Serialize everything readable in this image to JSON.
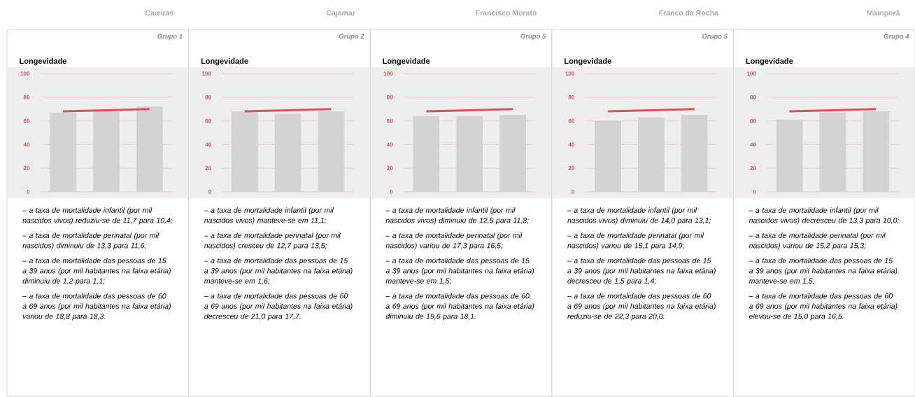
{
  "chart_data": [
    {
      "type": "bar",
      "title": "Longevidade",
      "subtitle": "Caieiras",
      "categories": [
        null,
        null,
        null
      ],
      "ylim": [
        0,
        100
      ],
      "yticks": [
        0,
        20,
        40,
        60,
        80,
        100
      ],
      "grid": "y",
      "tick_labels": "y",
      "series": [
        {
          "color": "#d3d3d3",
          "values": [
            67,
            68,
            72
          ]
        },
        {
          "type": "line",
          "color": "#e04e58",
          "values": [
            68,
            69,
            70
          ]
        }
      ],
      "annotations": [
        "Grupo 1",
        "– a taxa de mortalidade infantil (por mil nascidos vivos) reduziu-se de 11,7 para 10,4;",
        "– a taxa de mortalidade perinatal (por mil nascidos) diminuiu de 13,3 para 11,6;",
        "– a taxa de mortalidade das pessoas de 15 a 39 anos (por mil habitantes na faixa etária) diminuiu de 1,2 para 1,1;",
        "– a taxa de mortalidade das pessoas de 60 a 69 anos (por mil habitantes na faixa etária) variou de 18,8 para 18,3."
      ]
    },
    {
      "type": "bar",
      "title": "Longevidade",
      "subtitle": "Cajamar",
      "categories": [
        null,
        null,
        null
      ],
      "ylim": [
        0,
        100
      ],
      "yticks": [
        0,
        20,
        40,
        60,
        80,
        100
      ],
      "grid": "y",
      "tick_labels": "y",
      "series": [
        {
          "color": "#d3d3d3",
          "values": [
            68,
            66,
            68
          ]
        },
        {
          "type": "line",
          "color": "#e04e58",
          "values": [
            68,
            69,
            70
          ]
        }
      ],
      "annotations": [
        "Grupo 2",
        "– a taxa de mortalidade infantil (por mil nascidos vivos) manteve-se em 11,1;",
        "– a taxa de mortalidade perinatal (por mil nascidos) cresceu de 12,7 para 13,5;",
        "– a taxa de mortalidade das pessoas de 15 a 39 anos (por mil habitantes na faixa etária) manteve-se em 1,6;",
        "– a taxa de mortalidade das pessoas de 60 a 69 anos (por mil habitantes na faixa etária) decresceu de 21,0 para 17,7."
      ]
    },
    {
      "type": "bar",
      "title": "Longevidade",
      "subtitle": "Francisco Morato",
      "categories": [
        null,
        null,
        null
      ],
      "ylim": [
        0,
        100
      ],
      "yticks": [
        0,
        20,
        40,
        60,
        80,
        100
      ],
      "grid": "y",
      "tick_labels": "y",
      "series": [
        {
          "color": "#d3d3d3",
          "values": [
            64,
            64,
            65
          ]
        },
        {
          "type": "line",
          "color": "#e04e58",
          "values": [
            68,
            69,
            70
          ]
        }
      ],
      "annotations": [
        "Grupo 5",
        "– a taxa de mortalidade infantil (por mil nascidos vivos) diminuiu de 12,5 para 11,8;",
        "– a taxa de mortalidade perinatal (por mil nascidos) variou de 17,3 para 16,5;",
        "– a taxa de mortalidade das pessoas de 15 a 39 anos (por mil habitantes na faixa etária) manteve-se em 1,5;",
        "– a taxa de mortalidade das pessoas de 60 a 69 anos (por mil habitantes na faixa etária) diminuiu de 19,6 para 18,1."
      ]
    },
    {
      "type": "bar",
      "title": "Longevidade",
      "subtitle": "Franco da Rocha",
      "categories": [
        null,
        null,
        null
      ],
      "ylim": [
        0,
        100
      ],
      "yticks": [
        0,
        20,
        40,
        60,
        80,
        100
      ],
      "grid": "y",
      "tick_labels": "y",
      "series": [
        {
          "color": "#d3d3d3",
          "values": [
            60,
            63,
            65
          ]
        },
        {
          "type": "line",
          "color": "#e04e58",
          "values": [
            68,
            69,
            70
          ]
        }
      ],
      "annotations": [
        "Grupo 5",
        "– a taxa de mortalidade infantil (por mil nascidos vivos) diminuiu de 14,0 para 13,1;",
        "– a taxa de mortalidade perinatal (por mil nascidos) variou de 15,1 para 14,9;",
        "– a taxa de mortalidade das pessoas de 15 a 39 anos (por mil habitantes na faixa etária) decresceu de 1,5 para 1,4;",
        "– a taxa de mortalidade das pessoas de 60 a 69 anos (por mil habitantes na faixa etária) reduziu-se de 22,3 para 20,0."
      ]
    },
    {
      "type": "bar",
      "title": "Longevidade",
      "subtitle": "Mairiporã",
      "categories": [
        null,
        null,
        null
      ],
      "ylim": [
        0,
        100
      ],
      "yticks": [
        0,
        20,
        40,
        60,
        80,
        100
      ],
      "grid": "y",
      "tick_labels": "y",
      "series": [
        {
          "color": "#d3d3d3",
          "values": [
            61,
            67,
            68
          ]
        },
        {
          "type": "line",
          "color": "#e04e58",
          "values": [
            68,
            69,
            70
          ]
        }
      ],
      "annotations": [
        "Grupo 4",
        "– a taxa de mortalidade infantil (por mil nascidos vivos) decresceu de 13,3 para 10,0;",
        "– a taxa de mortalidade perinatal (por mil nascidos) variou de 15,2 para 15,3;",
        "– a taxa de mortalidade das pessoas de 15 a 39 anos (por mil habitantes na faixa etária) manteve-se em 1,5;",
        "– a taxa de mortalidade das pessoas de 60 a 69 anos (por mil habitantes na faixa etária) elevou-se de 15,0 para 16,5."
      ]
    }
  ]
}
